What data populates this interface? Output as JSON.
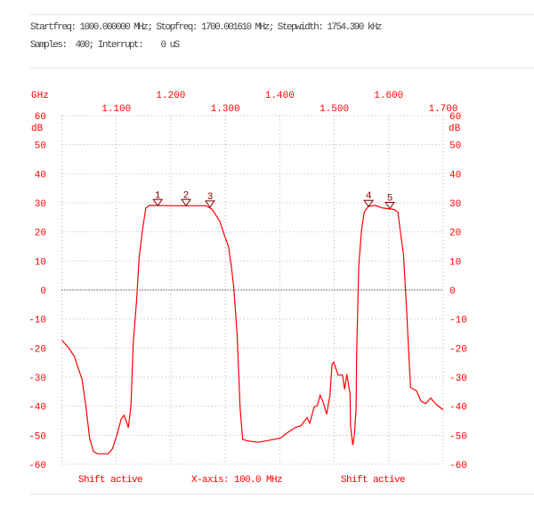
{
  "header": {
    "line1": "Startfreq: 1000.000000 MHz; Stopfreq: 1700.001610 MHz; Stepwidth: 1754.390 kHz",
    "line2": "Samples:  400; Interrupt:    0 uS"
  },
  "footer": {
    "left": "Shift active",
    "center": "X-axis: 100.0 MHz",
    "right": "Shift active"
  },
  "chart_data": {
    "type": "line",
    "xlabel": "GHz",
    "ylabel": "dB",
    "xlim": [
      1.0,
      1.7
    ],
    "ylim": [
      -60,
      60
    ],
    "grid": true,
    "xticks_upper": [
      "1.200",
      "1.400",
      "1.600"
    ],
    "xticks_lower": [
      "1.100",
      "1.300",
      "1.500",
      "1.700"
    ],
    "yticks": [
      60,
      50,
      40,
      30,
      20,
      10,
      0,
      -10,
      -20,
      -30,
      -40,
      -50,
      -60
    ],
    "reference_line": 0,
    "colors": {
      "trace": "#ff0000",
      "labels": "#ff0000",
      "markers": "#800000",
      "grid": "#b0b0b0"
    },
    "markers": [
      {
        "label": "1",
        "x": 1.176,
        "y": 29.0
      },
      {
        "label": "2",
        "x": 1.228,
        "y": 29.0
      },
      {
        "label": "3",
        "x": 1.272,
        "y": 28.5
      },
      {
        "label": "4",
        "x": 1.563,
        "y": 28.7
      },
      {
        "label": "5",
        "x": 1.602,
        "y": 28.0
      }
    ],
    "x": [
      1.0,
      1.012,
      1.023,
      1.031,
      1.037,
      1.044,
      1.051,
      1.058,
      1.066,
      1.085,
      1.093,
      1.101,
      1.109,
      1.114,
      1.118,
      1.122,
      1.127,
      1.131,
      1.137,
      1.142,
      1.148,
      1.154,
      1.161,
      1.202,
      1.265,
      1.276,
      1.29,
      1.299,
      1.306,
      1.311,
      1.316,
      1.322,
      1.327,
      1.332,
      1.344,
      1.36,
      1.379,
      1.401,
      1.415,
      1.428,
      1.439,
      1.45,
      1.455,
      1.463,
      1.469,
      1.474,
      1.48,
      1.486,
      1.492,
      1.496,
      1.499,
      1.507,
      1.515,
      1.519,
      1.523,
      1.529,
      1.53,
      1.534,
      1.537,
      1.54,
      1.541,
      1.545,
      1.55,
      1.555,
      1.562,
      1.575,
      1.589,
      1.61,
      1.617,
      1.621,
      1.627,
      1.632,
      1.637,
      1.64,
      1.651,
      1.659,
      1.668,
      1.677,
      1.687,
      1.7
    ],
    "y": [
      -17.3,
      -19.8,
      -22.9,
      -27.5,
      -30.6,
      -39.8,
      -51.0,
      -55.6,
      -56.4,
      -56.4,
      -54.6,
      -50.0,
      -44.4,
      -43.1,
      -44.9,
      -47.4,
      -39.8,
      -18.3,
      -4.0,
      11.3,
      20.6,
      28.2,
      29.1,
      29.0,
      29.0,
      27.7,
      23.6,
      18.5,
      14.9,
      8.3,
      0.1,
      -16.3,
      -40.3,
      -51.5,
      -52.0,
      -52.4,
      -51.8,
      -51.0,
      -49.0,
      -47.4,
      -46.7,
      -43.9,
      -45.9,
      -40.3,
      -39.8,
      -36.2,
      -38.8,
      -42.8,
      -36.2,
      -25.5,
      -24.9,
      -29.3,
      -29.3,
      -34.2,
      -29.0,
      -35.7,
      -46.9,
      -53.4,
      -50.0,
      -40.8,
      -22.4,
      8.3,
      20.6,
      26.7,
      28.7,
      29.1,
      28.2,
      27.7,
      26.7,
      20.6,
      12.4,
      -4.0,
      -22.4,
      -33.6,
      -34.7,
      -38.2,
      -39.1,
      -37.2,
      -39.3,
      -41.3
    ]
  }
}
